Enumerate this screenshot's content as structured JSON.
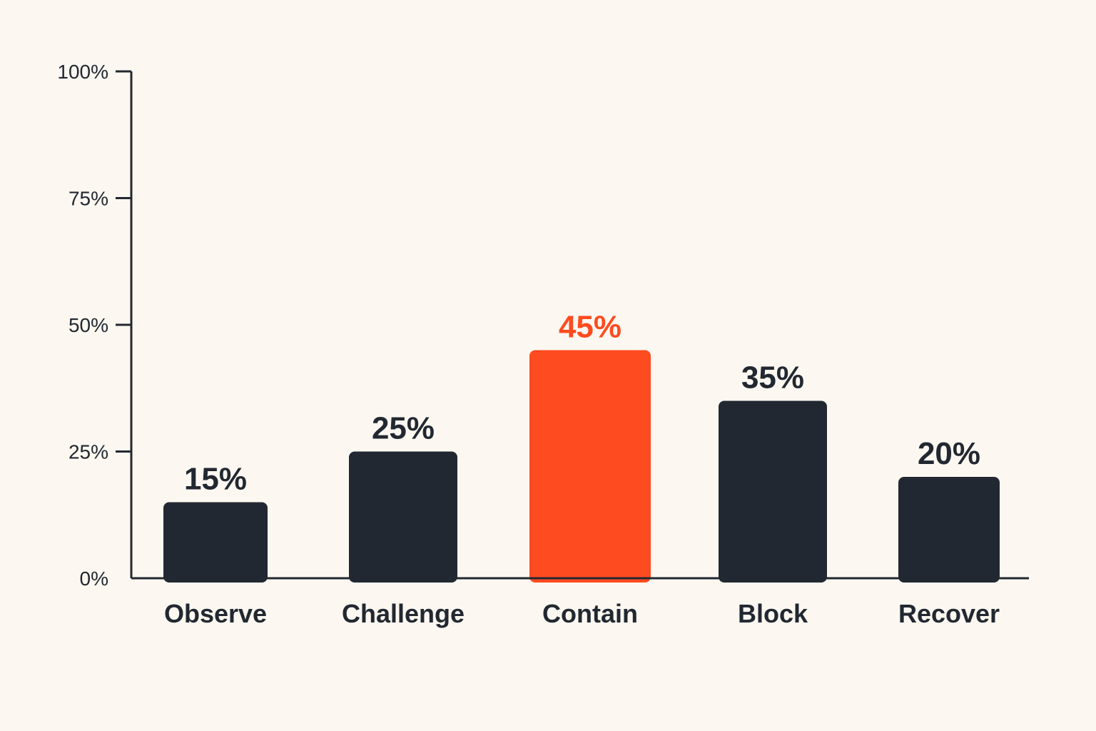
{
  "chart_data": {
    "type": "bar",
    "categories": [
      "Observe",
      "Challenge",
      "Contain",
      "Block",
      "Recover"
    ],
    "values": [
      15,
      25,
      45,
      35,
      20
    ],
    "value_labels": [
      "15%",
      "25%",
      "45%",
      "35%",
      "20%"
    ],
    "highlight_index": 2,
    "ylim": [
      0,
      100
    ],
    "yticks": [
      0,
      25,
      50,
      75,
      100
    ],
    "ytick_labels": [
      "0%",
      "25%",
      "50%",
      "75%",
      "100%"
    ],
    "grid": false,
    "colors": {
      "bar": "#222831",
      "highlight": "#ff4b20",
      "axis": "#222831",
      "text": "#222831",
      "background": "#fcf8f1"
    }
  }
}
